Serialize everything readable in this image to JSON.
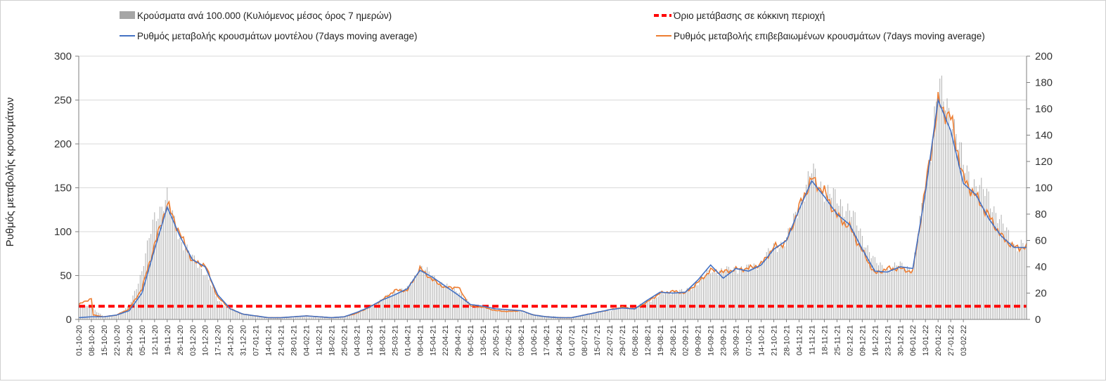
{
  "legend": {
    "bars_label": "Κρούσματα ανά 100.000 (Κυλιόμενος μέσος όρος 7 ημερών)",
    "threshold_label": "Όριο μετάβασης σε κόκκινη περιοχή",
    "model_label": "Ρυθμός μεταβολής κρουσμάτων μοντέλου (7days moving average)",
    "confirmed_label": "Ρυθμός μεταβολής επιβεβαιωμένων κρουσμάτων (7days moving average)"
  },
  "chart_data": {
    "type": "bar",
    "title": "",
    "ylabel": "Ρυθμός μεταβολής κρουσμάτων",
    "y2label": "",
    "ylim": [
      0,
      300
    ],
    "y2lim": [
      0,
      200
    ],
    "yticks": [
      "0",
      "50",
      "100",
      "150",
      "200",
      "250",
      "300"
    ],
    "y2ticks": [
      "0",
      "20",
      "40",
      "60",
      "80",
      "100",
      "120",
      "140",
      "160",
      "180",
      "200"
    ],
    "grid": "horizontal",
    "legend_position": "top",
    "x_start": "01-10-20",
    "x_end": "10-02-22",
    "x_tick_labels": [
      "01-10-20",
      "08-10-20",
      "15-10-20",
      "22-10-20",
      "29-10-20",
      "05-11-20",
      "12-11-20",
      "19-11-20",
      "26-11-20",
      "03-12-20",
      "10-12-20",
      "17-12-20",
      "24-12-20",
      "31-12-20",
      "07-01-21",
      "14-01-21",
      "21-01-21",
      "28-01-21",
      "04-02-21",
      "11-02-21",
      "18-02-21",
      "25-02-21",
      "04-03-21",
      "11-03-21",
      "18-03-21",
      "25-03-21",
      "01-04-21",
      "08-04-21",
      "15-04-21",
      "22-04-21",
      "29-04-21",
      "06-05-21",
      "13-05-21",
      "20-05-21",
      "27-05-21",
      "03-06-21",
      "10-06-21",
      "17-06-21",
      "24-06-21",
      "01-07-21",
      "08-07-21",
      "15-07-21",
      "22-07-21",
      "29-07-21",
      "05-08-21",
      "12-08-21",
      "19-08-21",
      "26-08-21",
      "02-09-21",
      "09-09-21",
      "16-09-21",
      "23-09-21",
      "30-09-21",
      "07-10-21",
      "14-10-21",
      "21-10-21",
      "28-10-21",
      "04-11-21",
      "11-11-21",
      "18-11-21",
      "25-11-21",
      "02-12-21",
      "09-12-21",
      "16-12-21",
      "23-12-21",
      "30-12-21",
      "06-01-22",
      "13-01-22",
      "20-01-22",
      "27-01-22",
      "03-02-22"
    ],
    "colors": {
      "bars": "#a6a6a6",
      "threshold": "#ff0000",
      "model": "#4472c4",
      "confirmed": "#ed7d31",
      "grid": "#d9d9d9",
      "axis": "#7f7f7f"
    },
    "series": [
      {
        "name": "Κρούσματα ανά 100.000 (Κυλιόμενος μέσος όρος 7 ημερών)",
        "kind": "bar",
        "axis": "left",
        "points": [
          [
            0,
            15
          ],
          [
            7,
            14
          ],
          [
            14,
            3
          ],
          [
            21,
            5
          ],
          [
            28,
            15
          ],
          [
            35,
            55
          ],
          [
            42,
            118
          ],
          [
            49,
            138
          ],
          [
            56,
            92
          ],
          [
            63,
            70
          ],
          [
            70,
            53
          ],
          [
            77,
            22
          ],
          [
            84,
            12
          ],
          [
            91,
            6
          ],
          [
            98,
            4
          ],
          [
            105,
            2
          ],
          [
            112,
            2
          ],
          [
            119,
            2
          ],
          [
            126,
            3
          ],
          [
            133,
            2
          ],
          [
            140,
            2
          ],
          [
            147,
            3
          ],
          [
            154,
            8
          ],
          [
            161,
            15
          ],
          [
            168,
            22
          ],
          [
            175,
            32
          ],
          [
            182,
            35
          ],
          [
            189,
            60
          ],
          [
            196,
            50
          ],
          [
            203,
            38
          ],
          [
            210,
            33
          ],
          [
            217,
            17
          ],
          [
            224,
            14
          ],
          [
            231,
            11
          ],
          [
            238,
            11
          ],
          [
            245,
            9
          ],
          [
            252,
            5
          ],
          [
            259,
            4
          ],
          [
            266,
            3
          ],
          [
            273,
            2
          ],
          [
            280,
            5
          ],
          [
            287,
            8
          ],
          [
            294,
            10
          ],
          [
            301,
            13
          ],
          [
            308,
            14
          ],
          [
            315,
            20
          ],
          [
            322,
            28
          ],
          [
            329,
            32
          ],
          [
            336,
            32
          ],
          [
            343,
            42
          ],
          [
            350,
            56
          ],
          [
            357,
            55
          ],
          [
            364,
            58
          ],
          [
            371,
            58
          ],
          [
            378,
            65
          ],
          [
            385,
            82
          ],
          [
            392,
            90
          ],
          [
            399,
            130
          ],
          [
            406,
            168
          ],
          [
            413,
            148
          ],
          [
            420,
            136
          ],
          [
            427,
            125
          ],
          [
            434,
            95
          ],
          [
            441,
            65
          ],
          [
            448,
            57
          ],
          [
            455,
            62
          ],
          [
            462,
            58
          ],
          [
            469,
            150
          ],
          [
            476,
            262
          ],
          [
            483,
            238
          ],
          [
            490,
            175
          ],
          [
            497,
            153
          ],
          [
            504,
            140
          ],
          [
            511,
            110
          ],
          [
            518,
            85
          ]
        ]
      },
      {
        "name": "Όριο μετάβασης σε κόκκινη περιοχή",
        "kind": "line",
        "axis": "left",
        "points": [
          [
            0,
            15
          ],
          [
            525,
            15
          ]
        ]
      },
      {
        "name": "Ρυθμός μεταβολής κρουσμάτων μοντέλου (7days moving average)",
        "kind": "line",
        "axis": "left",
        "points": [
          [
            0,
            2
          ],
          [
            7,
            3
          ],
          [
            14,
            3
          ],
          [
            21,
            5
          ],
          [
            28,
            10
          ],
          [
            35,
            30
          ],
          [
            42,
            80
          ],
          [
            49,
            128
          ],
          [
            56,
            95
          ],
          [
            63,
            68
          ],
          [
            70,
            60
          ],
          [
            77,
            28
          ],
          [
            84,
            12
          ],
          [
            91,
            6
          ],
          [
            98,
            4
          ],
          [
            105,
            2
          ],
          [
            112,
            2
          ],
          [
            119,
            3
          ],
          [
            126,
            4
          ],
          [
            133,
            3
          ],
          [
            140,
            2
          ],
          [
            147,
            3
          ],
          [
            154,
            8
          ],
          [
            161,
            14
          ],
          [
            168,
            22
          ],
          [
            175,
            28
          ],
          [
            182,
            35
          ],
          [
            189,
            56
          ],
          [
            196,
            48
          ],
          [
            203,
            38
          ],
          [
            210,
            28
          ],
          [
            217,
            17
          ],
          [
            224,
            15
          ],
          [
            231,
            12
          ],
          [
            238,
            11
          ],
          [
            245,
            10
          ],
          [
            252,
            5
          ],
          [
            259,
            3
          ],
          [
            266,
            2
          ],
          [
            273,
            2
          ],
          [
            280,
            5
          ],
          [
            287,
            8
          ],
          [
            294,
            11
          ],
          [
            301,
            13
          ],
          [
            308,
            12
          ],
          [
            315,
            22
          ],
          [
            322,
            31
          ],
          [
            329,
            30
          ],
          [
            336,
            31
          ],
          [
            343,
            45
          ],
          [
            350,
            62
          ],
          [
            357,
            47
          ],
          [
            364,
            58
          ],
          [
            371,
            55
          ],
          [
            378,
            62
          ],
          [
            385,
            80
          ],
          [
            392,
            90
          ],
          [
            399,
            125
          ],
          [
            406,
            158
          ],
          [
            413,
            140
          ],
          [
            420,
            120
          ],
          [
            427,
            108
          ],
          [
            434,
            80
          ],
          [
            441,
            55
          ],
          [
            448,
            54
          ],
          [
            455,
            60
          ],
          [
            462,
            58
          ],
          [
            469,
            145
          ],
          [
            476,
            250
          ],
          [
            483,
            215
          ],
          [
            490,
            155
          ],
          [
            497,
            142
          ],
          [
            504,
            115
          ],
          [
            511,
            95
          ],
          [
            518,
            82
          ]
        ]
      },
      {
        "name": "Ρυθμός μεταβολής επιβεβαιωμένων κρουσμάτων (7days moving average)",
        "kind": "line",
        "axis": "left",
        "points": [
          [
            0,
            17
          ],
          [
            7,
            24
          ],
          [
            8,
            5
          ],
          [
            14,
            3
          ],
          [
            21,
            5
          ],
          [
            28,
            12
          ],
          [
            35,
            35
          ],
          [
            42,
            85
          ],
          [
            49,
            132
          ],
          [
            56,
            98
          ],
          [
            63,
            66
          ],
          [
            70,
            62
          ],
          [
            77,
            25
          ],
          [
            84,
            12
          ],
          [
            91,
            6
          ],
          [
            98,
            4
          ],
          [
            105,
            2
          ],
          [
            112,
            2
          ],
          [
            119,
            3
          ],
          [
            126,
            4
          ],
          [
            133,
            3
          ],
          [
            140,
            2
          ],
          [
            147,
            3
          ],
          [
            154,
            7
          ],
          [
            161,
            14
          ],
          [
            168,
            22
          ],
          [
            175,
            33
          ],
          [
            182,
            33
          ],
          [
            189,
            58
          ],
          [
            196,
            45
          ],
          [
            203,
            36
          ],
          [
            210,
            37
          ],
          [
            217,
            15
          ],
          [
            224,
            14
          ],
          [
            231,
            10
          ],
          [
            238,
            9
          ],
          [
            245,
            10
          ],
          [
            252,
            5
          ],
          [
            259,
            3
          ],
          [
            266,
            2
          ],
          [
            273,
            2
          ],
          [
            280,
            5
          ],
          [
            287,
            8
          ],
          [
            294,
            11
          ],
          [
            301,
            14
          ],
          [
            308,
            12
          ],
          [
            315,
            20
          ],
          [
            322,
            30
          ],
          [
            329,
            32
          ],
          [
            336,
            30
          ],
          [
            343,
            42
          ],
          [
            350,
            56
          ],
          [
            357,
            54
          ],
          [
            364,
            57
          ],
          [
            371,
            58
          ],
          [
            378,
            63
          ],
          [
            385,
            82
          ],
          [
            392,
            88
          ],
          [
            399,
            128
          ],
          [
            406,
            160
          ],
          [
            413,
            145
          ],
          [
            420,
            118
          ],
          [
            427,
            105
          ],
          [
            434,
            78
          ],
          [
            441,
            52
          ],
          [
            448,
            58
          ],
          [
            455,
            58
          ],
          [
            462,
            54
          ],
          [
            469,
            150
          ],
          [
            476,
            245
          ],
          [
            483,
            230
          ],
          [
            490,
            160
          ],
          [
            497,
            140
          ],
          [
            504,
            118
          ],
          [
            511,
            95
          ],
          [
            518,
            82
          ]
        ]
      }
    ]
  }
}
